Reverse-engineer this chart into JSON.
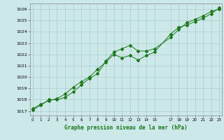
{
  "line1_x": [
    0,
    1,
    2,
    3,
    4,
    5,
    6,
    7,
    8,
    9,
    10,
    11,
    12,
    13,
    14,
    15,
    17,
    18,
    19,
    20,
    21,
    22,
    23
  ],
  "line1_y": [
    1017.1,
    1017.5,
    1018.0,
    1018.0,
    1018.2,
    1018.7,
    1019.3,
    1019.9,
    1020.3,
    1021.4,
    1022.2,
    1022.5,
    1022.8,
    1022.3,
    1022.3,
    1022.5,
    1023.5,
    1024.2,
    1024.8,
    1025.1,
    1025.4,
    1025.8,
    1026.0
  ],
  "line2_x": [
    0,
    1,
    2,
    3,
    4,
    5,
    6,
    7,
    8,
    9,
    10,
    11,
    12,
    13,
    14,
    15,
    17,
    18,
    19,
    20,
    21,
    22,
    23
  ],
  "line2_y": [
    1017.2,
    1017.6,
    1017.9,
    1018.1,
    1018.5,
    1019.1,
    1019.6,
    1020.0,
    1020.7,
    1021.3,
    1022.0,
    1021.7,
    1021.9,
    1021.5,
    1021.9,
    1022.2,
    1023.8,
    1024.4,
    1024.6,
    1024.9,
    1025.2,
    1025.6,
    1026.1
  ],
  "line_color": "#1a7a1a",
  "bg_color": "#cce8e8",
  "grid_color": "#aacccc",
  "ylabel_ticks": [
    1017,
    1018,
    1019,
    1020,
    1021,
    1022,
    1023,
    1024,
    1025,
    1026
  ],
  "xlabel_ticks": [
    0,
    1,
    2,
    3,
    4,
    5,
    6,
    7,
    8,
    9,
    10,
    11,
    12,
    13,
    14,
    15,
    17,
    18,
    19,
    20,
    21,
    22,
    23
  ],
  "xlabel": "Graphe pression niveau de la mer (hPa)",
  "ylim": [
    1016.6,
    1026.5
  ],
  "xlim": [
    -0.3,
    23.3
  ]
}
